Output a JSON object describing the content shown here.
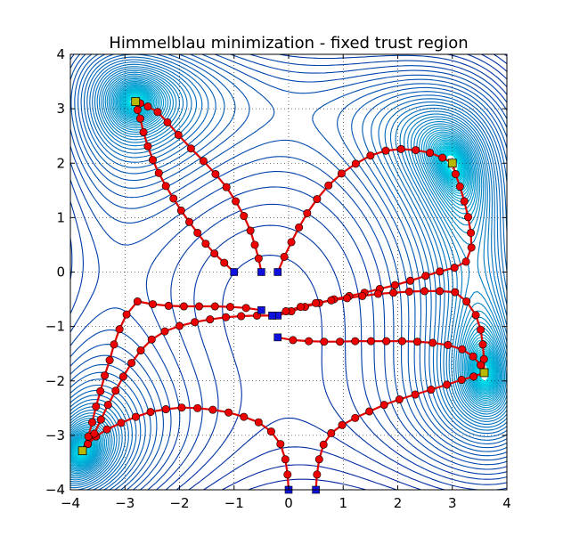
{
  "chart_data": {
    "type": "line",
    "title": "Himmelblau minimization - fixed trust region",
    "xlabel": "",
    "ylabel": "",
    "xlim": [
      -4,
      4
    ],
    "ylim": [
      -4,
      4
    ],
    "xticks": [
      -4,
      -3,
      -2,
      -1,
      0,
      1,
      2,
      3,
      4
    ],
    "yticks": [
      -4,
      -3,
      -2,
      -1,
      0,
      1,
      2,
      3,
      4
    ],
    "xtick_labels": [
      "−4",
      "−3",
      "−2",
      "−1",
      "0",
      "1",
      "2",
      "3",
      "4"
    ],
    "ytick_labels": [
      "−4",
      "−3",
      "−2",
      "−1",
      "0",
      "1",
      "2",
      "3",
      "4"
    ],
    "grid": true,
    "background": "filled contour lines of the Himmelblau function",
    "colors": {
      "path": "#e00000",
      "path_marker": "#ee0000",
      "start_marker": "#1010dd",
      "end_marker": "#b8b800",
      "contour_low": "#00e5ee",
      "contour_high": "#000090"
    },
    "minima": [
      [
        3.0,
        2.0
      ],
      [
        -2.805,
        3.131
      ],
      [
        -3.779,
        -3.283
      ],
      [
        3.584,
        -1.848
      ]
    ],
    "series": [
      {
        "start": [
          -1.0,
          0.0
        ],
        "end": [
          -2.805,
          3.131
        ],
        "points": [
          [
            -1.0,
            0.0
          ],
          [
            -1.18,
            0.17
          ],
          [
            -1.36,
            0.34
          ],
          [
            -1.52,
            0.52
          ],
          [
            -1.67,
            0.72
          ],
          [
            -1.82,
            0.92
          ],
          [
            -1.97,
            1.13
          ],
          [
            -2.11,
            1.35
          ],
          [
            -2.25,
            1.58
          ],
          [
            -2.38,
            1.82
          ],
          [
            -2.49,
            2.06
          ],
          [
            -2.58,
            2.31
          ],
          [
            -2.66,
            2.57
          ],
          [
            -2.72,
            2.82
          ],
          [
            -2.77,
            2.98
          ],
          [
            -2.805,
            3.131
          ]
        ]
      },
      {
        "start": [
          -0.5,
          0.0
        ],
        "end": [
          -2.805,
          3.131
        ],
        "points": [
          [
            -0.5,
            0.0
          ],
          [
            -0.55,
            0.25
          ],
          [
            -0.62,
            0.5
          ],
          [
            -0.7,
            0.76
          ],
          [
            -0.82,
            1.03
          ],
          [
            -0.97,
            1.3
          ],
          [
            -1.14,
            1.56
          ],
          [
            -1.34,
            1.8
          ],
          [
            -1.56,
            2.04
          ],
          [
            -1.79,
            2.27
          ],
          [
            -2.02,
            2.52
          ],
          [
            -2.22,
            2.75
          ],
          [
            -2.4,
            2.94
          ],
          [
            -2.58,
            3.04
          ],
          [
            -2.72,
            3.1
          ],
          [
            -2.805,
            3.131
          ]
        ]
      },
      {
        "start": [
          -0.2,
          0.0
        ],
        "end": [
          3.0,
          2.0
        ],
        "points": [
          [
            -0.2,
            0.0
          ],
          [
            -0.08,
            0.28
          ],
          [
            0.05,
            0.55
          ],
          [
            0.19,
            0.82
          ],
          [
            0.34,
            1.08
          ],
          [
            0.52,
            1.34
          ],
          [
            0.73,
            1.59
          ],
          [
            0.97,
            1.81
          ],
          [
            1.23,
            1.99
          ],
          [
            1.5,
            2.14
          ],
          [
            1.78,
            2.23
          ],
          [
            2.06,
            2.26
          ],
          [
            2.33,
            2.24
          ],
          [
            2.59,
            2.19
          ],
          [
            2.82,
            2.1
          ],
          [
            3.0,
            2.0
          ]
        ]
      },
      {
        "start": [
          -0.2,
          -0.8
        ],
        "end": [
          3.0,
          2.0
        ],
        "points": [
          [
            -0.2,
            -0.8
          ],
          [
            0.05,
            -0.72
          ],
          [
            0.3,
            -0.64
          ],
          [
            0.56,
            -0.57
          ],
          [
            0.83,
            -0.5
          ],
          [
            1.11,
            -0.44
          ],
          [
            1.39,
            -0.38
          ],
          [
            1.67,
            -0.31
          ],
          [
            1.95,
            -0.24
          ],
          [
            2.23,
            -0.16
          ],
          [
            2.51,
            -0.07
          ],
          [
            2.77,
            0.01
          ],
          [
            3.04,
            0.08
          ],
          [
            3.25,
            0.19
          ],
          [
            3.35,
            0.45
          ],
          [
            3.34,
            0.72
          ],
          [
            3.29,
            1.01
          ],
          [
            3.22,
            1.3
          ],
          [
            3.14,
            1.57
          ],
          [
            3.06,
            1.8
          ],
          [
            3.0,
            2.0
          ]
        ]
      },
      {
        "start": [
          -0.3,
          -0.8
        ],
        "end": [
          3.584,
          -1.848
        ],
        "points": [
          [
            -0.3,
            -0.8
          ],
          [
            -0.05,
            -0.72
          ],
          [
            0.22,
            -0.64
          ],
          [
            0.5,
            -0.57
          ],
          [
            0.78,
            -0.52
          ],
          [
            1.07,
            -0.48
          ],
          [
            1.35,
            -0.44
          ],
          [
            1.64,
            -0.4
          ],
          [
            1.92,
            -0.38
          ],
          [
            2.21,
            -0.36
          ],
          [
            2.49,
            -0.35
          ],
          [
            2.77,
            -0.35
          ],
          [
            3.05,
            -0.37
          ],
          [
            3.26,
            -0.54
          ],
          [
            3.43,
            -0.79
          ],
          [
            3.52,
            -1.06
          ],
          [
            3.56,
            -1.33
          ],
          [
            3.58,
            -1.6
          ],
          [
            3.584,
            -1.848
          ]
        ]
      },
      {
        "start": [
          -0.2,
          -1.2
        ],
        "end": [
          3.584,
          -1.848
        ],
        "points": [
          [
            -0.2,
            -1.2
          ],
          [
            0.08,
            -1.25
          ],
          [
            0.37,
            -1.27
          ],
          [
            0.65,
            -1.28
          ],
          [
            0.94,
            -1.28
          ],
          [
            1.22,
            -1.27
          ],
          [
            1.51,
            -1.27
          ],
          [
            1.79,
            -1.27
          ],
          [
            2.08,
            -1.27
          ],
          [
            2.36,
            -1.28
          ],
          [
            2.64,
            -1.3
          ],
          [
            2.92,
            -1.34
          ],
          [
            3.18,
            -1.42
          ],
          [
            3.38,
            -1.55
          ],
          [
            3.52,
            -1.71
          ],
          [
            3.584,
            -1.848
          ]
        ]
      },
      {
        "start": [
          0.5,
          -4.0
        ],
        "end": [
          3.584,
          -1.848
        ],
        "points": [
          [
            0.5,
            -4.0
          ],
          [
            0.52,
            -3.72
          ],
          [
            0.56,
            -3.44
          ],
          [
            0.64,
            -3.17
          ],
          [
            0.78,
            -2.96
          ],
          [
            0.98,
            -2.81
          ],
          [
            1.22,
            -2.68
          ],
          [
            1.48,
            -2.56
          ],
          [
            1.75,
            -2.44
          ],
          [
            2.03,
            -2.34
          ],
          [
            2.32,
            -2.25
          ],
          [
            2.61,
            -2.16
          ],
          [
            2.9,
            -2.07
          ],
          [
            3.17,
            -1.98
          ],
          [
            3.39,
            -1.92
          ],
          [
            3.584,
            -1.848
          ]
        ]
      },
      {
        "start": [
          0.0,
          -4.0
        ],
        "end": [
          -3.779,
          -3.283
        ],
        "points": [
          [
            0.0,
            -4.0
          ],
          [
            -0.02,
            -3.72
          ],
          [
            -0.06,
            -3.44
          ],
          [
            -0.15,
            -3.16
          ],
          [
            -0.32,
            -2.93
          ],
          [
            -0.55,
            -2.76
          ],
          [
            -0.82,
            -2.66
          ],
          [
            -1.1,
            -2.58
          ],
          [
            -1.39,
            -2.53
          ],
          [
            -1.67,
            -2.5
          ],
          [
            -1.96,
            -2.49
          ],
          [
            -2.25,
            -2.52
          ],
          [
            -2.53,
            -2.57
          ],
          [
            -2.8,
            -2.66
          ],
          [
            -3.07,
            -2.77
          ],
          [
            -3.33,
            -2.89
          ],
          [
            -3.53,
            -3.02
          ],
          [
            -3.68,
            -3.16
          ],
          [
            -3.779,
            -3.283
          ]
        ]
      },
      {
        "start": [
          -0.5,
          -0.7
        ],
        "end": [
          -3.779,
          -3.283
        ],
        "points": [
          [
            -0.5,
            -0.7
          ],
          [
            -0.78,
            -0.66
          ],
          [
            -1.07,
            -0.64
          ],
          [
            -1.35,
            -0.63
          ],
          [
            -1.64,
            -0.63
          ],
          [
            -1.92,
            -0.63
          ],
          [
            -2.2,
            -0.62
          ],
          [
            -2.49,
            -0.59
          ],
          [
            -2.77,
            -0.54
          ],
          [
            -2.97,
            -0.78
          ],
          [
            -3.1,
            -1.05
          ],
          [
            -3.2,
            -1.33
          ],
          [
            -3.28,
            -1.62
          ],
          [
            -3.37,
            -1.9
          ],
          [
            -3.45,
            -2.19
          ],
          [
            -3.53,
            -2.47
          ],
          [
            -3.6,
            -2.76
          ],
          [
            -3.67,
            -3.02
          ],
          [
            -3.779,
            -3.283
          ]
        ]
      },
      {
        "start": [
          -0.3,
          -0.8
        ],
        "end": [
          -3.779,
          -3.283
        ],
        "points": [
          [
            -0.3,
            -0.8
          ],
          [
            -0.58,
            -0.8
          ],
          [
            -0.87,
            -0.81
          ],
          [
            -1.15,
            -0.83
          ],
          [
            -1.44,
            -0.87
          ],
          [
            -1.72,
            -0.92
          ],
          [
            -2.0,
            -0.99
          ],
          [
            -2.27,
            -1.09
          ],
          [
            -2.51,
            -1.24
          ],
          [
            -2.71,
            -1.44
          ],
          [
            -2.88,
            -1.67
          ],
          [
            -3.03,
            -1.92
          ],
          [
            -3.17,
            -2.18
          ],
          [
            -3.31,
            -2.44
          ],
          [
            -3.44,
            -2.71
          ],
          [
            -3.56,
            -2.97
          ],
          [
            -3.68,
            -3.16
          ],
          [
            -3.779,
            -3.283
          ]
        ]
      }
    ]
  }
}
